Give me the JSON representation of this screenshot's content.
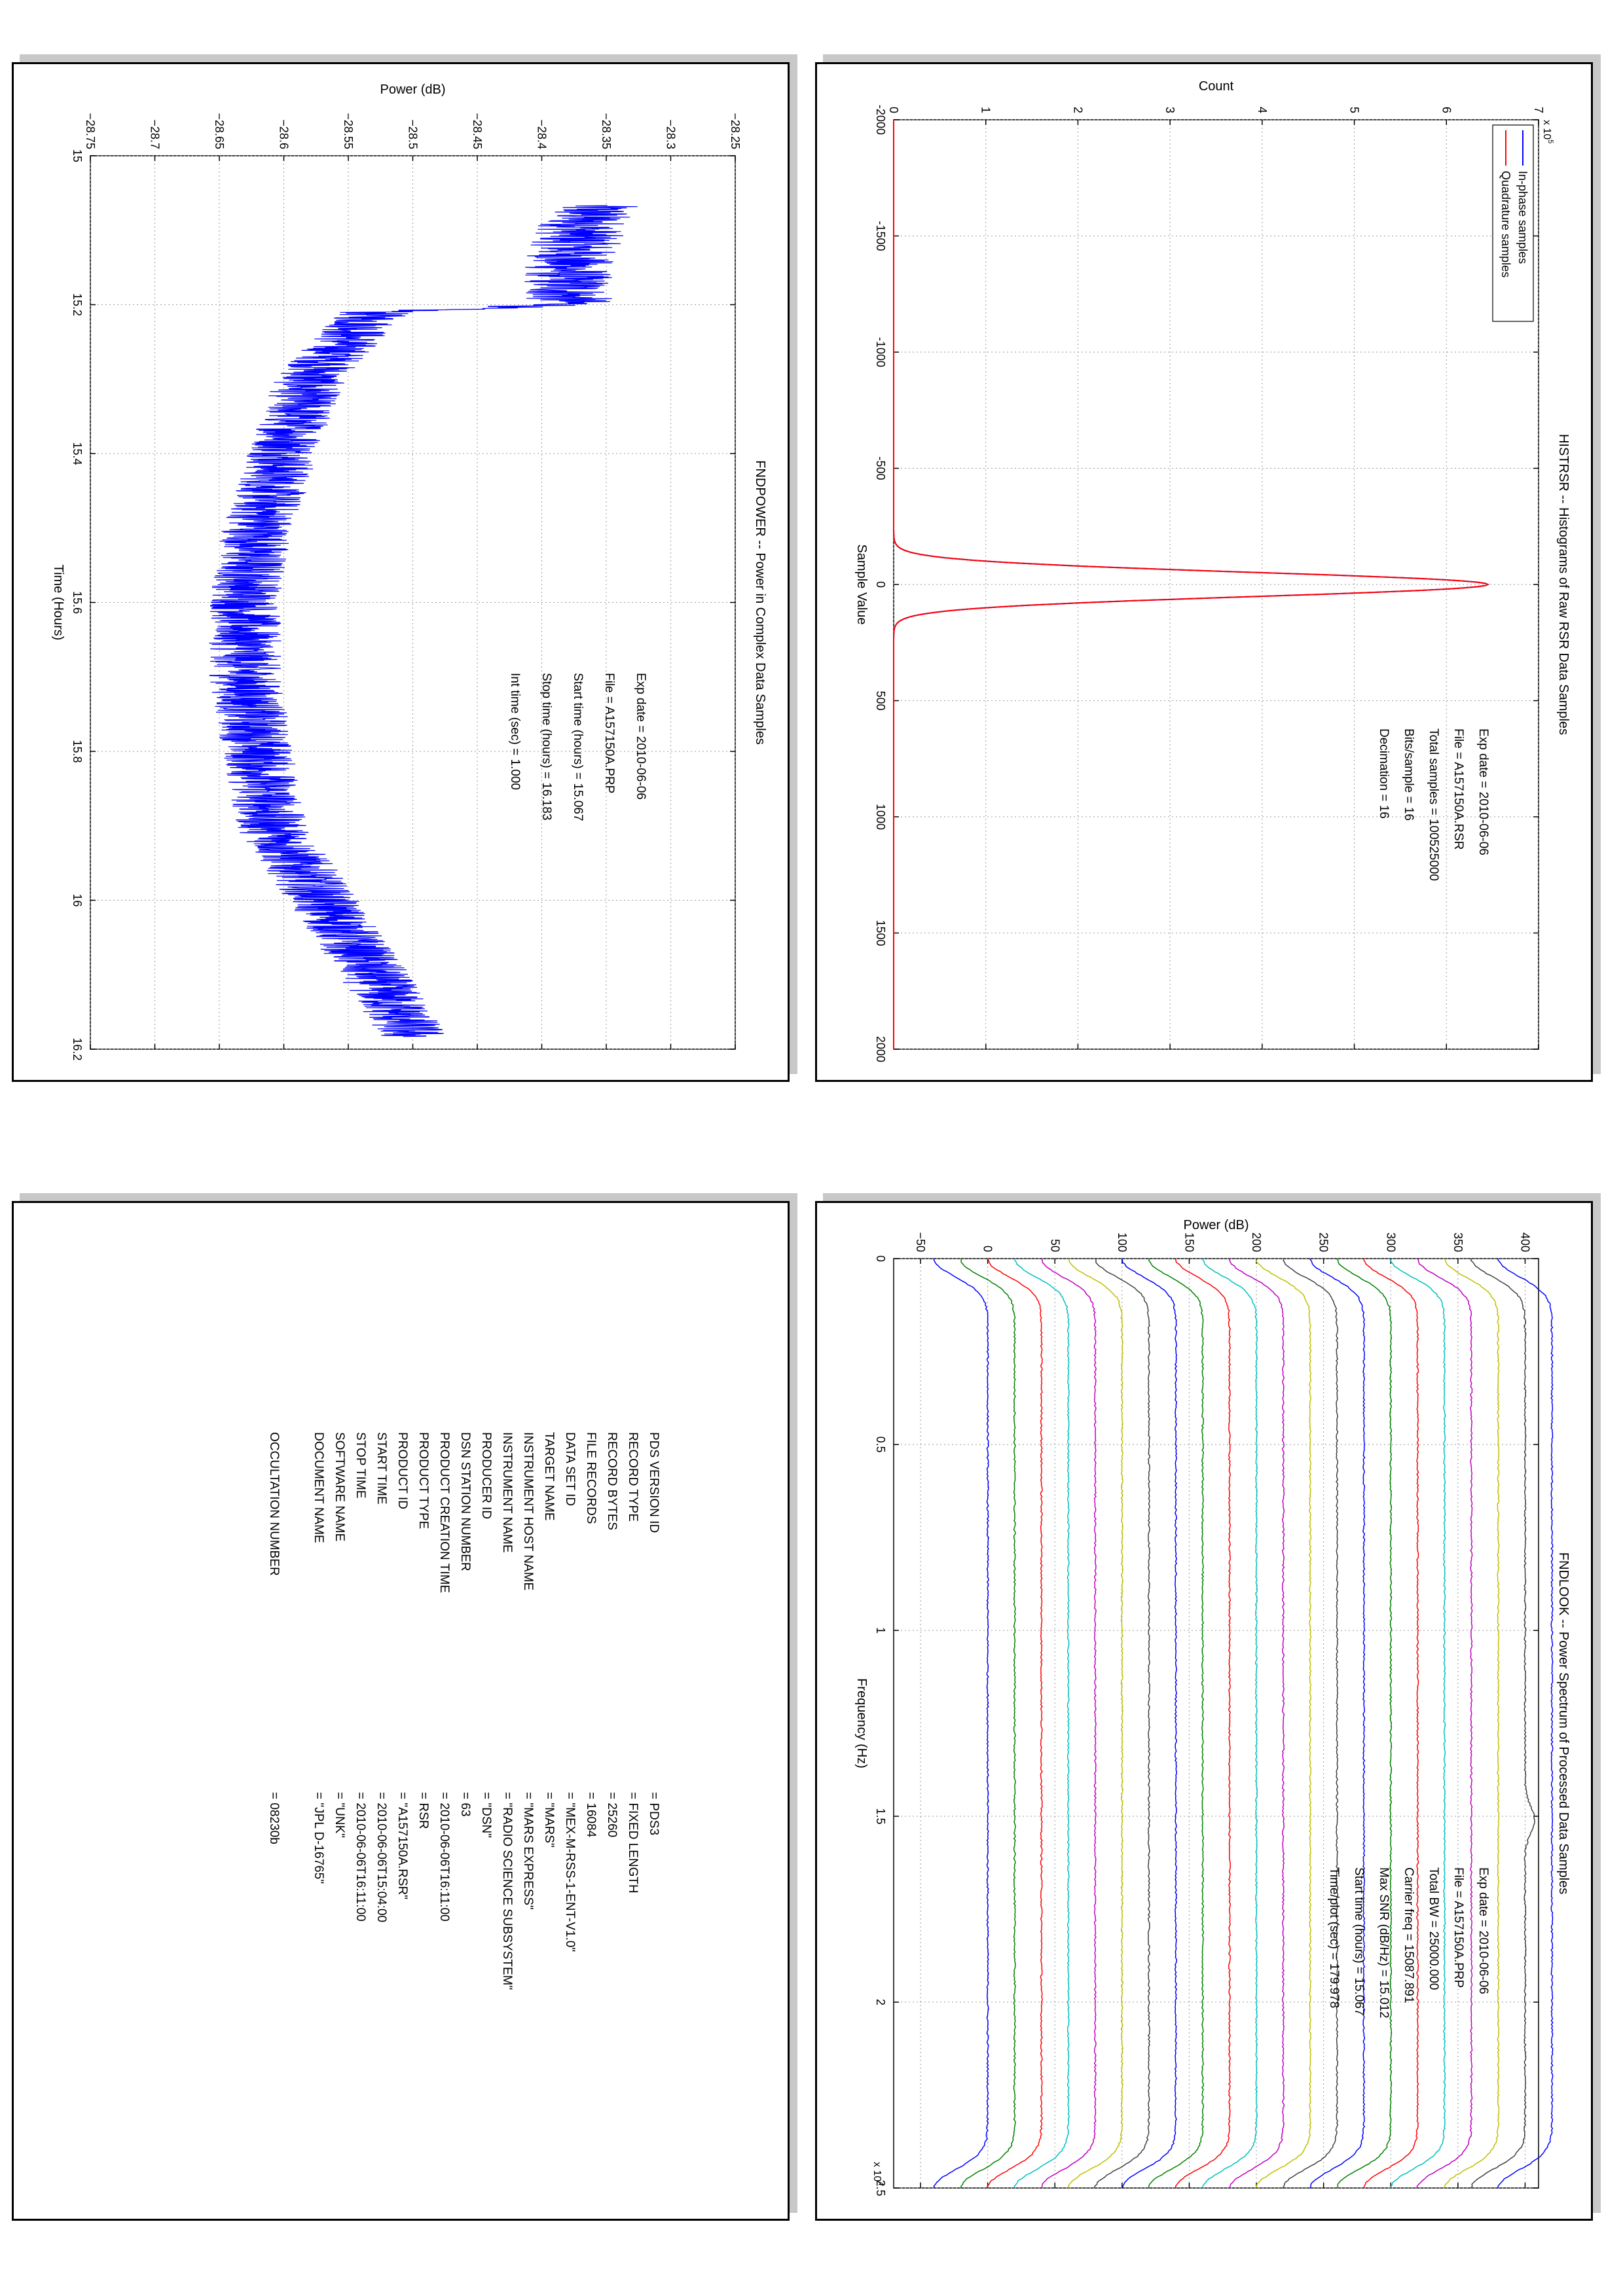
{
  "page": {
    "background": "#ffffff"
  },
  "colors": {
    "blue": "#0000ff",
    "red": "#ff0000"
  },
  "hist": {
    "title": "HISTRSR -- Histograms of Raw RSR Data Samples",
    "xlabel": "Sample Value",
    "ylabel": "Count",
    "y_exponent": "x 10",
    "y_exponent_power": "5",
    "legend": [
      "In-phase samples",
      "Quadrature samples"
    ],
    "info": [
      {
        "k": "Exp date",
        "v": "2010-06-06"
      },
      {
        "k": "File",
        "v": "A157150A.RSR"
      },
      {
        "k": "Total samples",
        "v": "100525000"
      },
      {
        "k": "Bits/sample",
        "v": "16"
      },
      {
        "k": "Decimation",
        "v": "16"
      }
    ]
  },
  "power": {
    "title": "FNDPOWER -- Power in Complex Data Samples",
    "xlabel": "Time (Hours)",
    "ylabel": "Power (dB)",
    "info": [
      {
        "k": "Exp date",
        "v": "2010-06-06"
      },
      {
        "k": "File",
        "v": "A157150A.PRP"
      },
      {
        "k": "Start time (hours)",
        "v": "15.067"
      },
      {
        "k": "Stop time (hours)",
        "v": "16.183"
      },
      {
        "k": "Int time (sec)",
        "v": "1.000"
      }
    ]
  },
  "spec": {
    "title": "FNDLOOK -- Power Spectrum of Processed Data Samples",
    "xlabel": "Frequency (Hz)",
    "ylabel": "Power (dB)",
    "x_exponent": "x 10",
    "x_exponent_power": "4",
    "info": [
      {
        "k": "Exp date",
        "v": "2010-06-06"
      },
      {
        "k": "File",
        "v": "A157150A.PRP"
      },
      {
        "k": "Total BW",
        "v": "25000.000"
      },
      {
        "k": "Carrier freq",
        "v": "15087.891"
      },
      {
        "k": "Max SNR (dB/Hz)",
        "v": "15.012"
      },
      {
        "k": "Start time (hours)",
        "v": "15.067"
      },
      {
        "k": "Time/plot (sec)",
        "v": "179.978"
      }
    ]
  },
  "labels": {
    "rows": [
      {
        "k": "PDS VERSION ID",
        "v": "PDS3"
      },
      {
        "k": "RECORD TYPE",
        "v": "FIXED LENGTH"
      },
      {
        "k": "RECORD BYTES",
        "v": "25260"
      },
      {
        "k": "FILE RECORDS",
        "v": "16084"
      },
      {
        "k": "DATA SET ID",
        "v": "\"MEX-M-RSS-1-ENT-V1.0\""
      },
      {
        "k": "TARGET NAME",
        "v": "\"MARS\""
      },
      {
        "k": "INSTRUMENT HOST NAME",
        "v": "\"MARS EXPRESS\""
      },
      {
        "k": "INSTRUMENT NAME",
        "v": "\"RADIO SCIENCE SUBSYSTEM\""
      },
      {
        "k": "PRODUCER ID",
        "v": "\"DSN\""
      },
      {
        "k": "DSN STATION NUMBER",
        "v": "63"
      },
      {
        "k": "PRODUCT CREATION TIME",
        "v": "2010-06-06T16:11:00"
      },
      {
        "k": "PRODUCT TYPE",
        "v": "RSR"
      },
      {
        "k": "PRODUCT ID",
        "v": "\"A157150A.RSR\""
      },
      {
        "k": "START TIME",
        "v": "2010-06-06T15:04:00"
      },
      {
        "k": "STOP TIME",
        "v": "2010-06-06T16:11:00"
      },
      {
        "k": "SOFTWARE NAME",
        "v": "\"UNK\""
      },
      {
        "k": "DOCUMENT NAME",
        "v": "\"JPL D-16765\""
      }
    ],
    "occultation": {
      "k": "OCCULTATION NUMBER",
      "v": "08230b"
    }
  },
  "chart_data": [
    {
      "type": "line",
      "title": "HISTRSR -- Histograms of Raw RSR Data Samples",
      "xlabel": "Sample Value",
      "ylabel": "Count",
      "xlim": [
        -2000,
        2000
      ],
      "ylim": [
        0,
        700000
      ],
      "x_ticks": [
        -2000,
        -1500,
        -1000,
        -500,
        0,
        500,
        1000,
        1500,
        2000
      ],
      "y_ticks": [
        0,
        1,
        2,
        3,
        4,
        5,
        6,
        7
      ],
      "y_scale_label": "x 10^5",
      "grid": true,
      "legend_position": "top-left",
      "series": [
        {
          "name": "In-phase samples",
          "color": "#0000ff",
          "peak_x": 0,
          "peak_y": 645000,
          "width_sigma": 52
        },
        {
          "name": "Quadrature samples",
          "color": "#ff0000",
          "peak_x": 0,
          "peak_y": 645000,
          "width_sigma": 52
        }
      ]
    },
    {
      "type": "line",
      "title": "FNDPOWER -- Power in Complex Data Samples",
      "xlabel": "Time (Hours)",
      "ylabel": "Power (dB)",
      "xlim": [
        15,
        16.2
      ],
      "ylim": [
        -28.75,
        -28.25
      ],
      "x_ticks": [
        15,
        15.2,
        15.4,
        15.6,
        15.8,
        16,
        16.2
      ],
      "y_ticks": [
        "-28.75",
        "-28.7",
        "-28.65",
        "-28.6",
        "-28.55",
        "-28.5",
        "-28.45",
        "-28.4",
        "-28.35",
        "-28.3",
        "-28.25"
      ],
      "grid": true,
      "series": [
        {
          "color": "#0000ff",
          "x": [
            15.067,
            15.1,
            15.15,
            15.2,
            15.21,
            15.3,
            15.4,
            15.5,
            15.6,
            15.7,
            15.8,
            15.9,
            16.0,
            16.1,
            16.183
          ],
          "y": [
            -28.36,
            -28.37,
            -28.38,
            -28.38,
            -28.53,
            -28.58,
            -28.6,
            -28.62,
            -28.63,
            -28.63,
            -28.62,
            -28.61,
            -28.57,
            -28.53,
            -28.5
          ]
        }
      ]
    },
    {
      "type": "line",
      "title": "FNDLOOK -- Power Spectrum of Processed Data Samples",
      "xlabel": "Frequency (Hz)",
      "ylabel": "Power (dB)",
      "xlim": [
        0,
        25000
      ],
      "ylim": [
        -70,
        410
      ],
      "x_ticks": [
        0,
        0.5,
        1,
        1.5,
        2,
        2.5
      ],
      "x_scale_label": "x 10^4",
      "y_ticks": [
        -50,
        0,
        50,
        100,
        150,
        200,
        250,
        300,
        350,
        400
      ],
      "grid": true,
      "series_count": 22,
      "series_offset_db": 20,
      "series_start_db": -55,
      "series_colors": [
        "#0000ff",
        "#008000",
        "#ff0000",
        "#00bfbf",
        "#bf00bf",
        "#bfbf00",
        "#404040"
      ],
      "carrier_peak_x": 15087.891
    }
  ]
}
